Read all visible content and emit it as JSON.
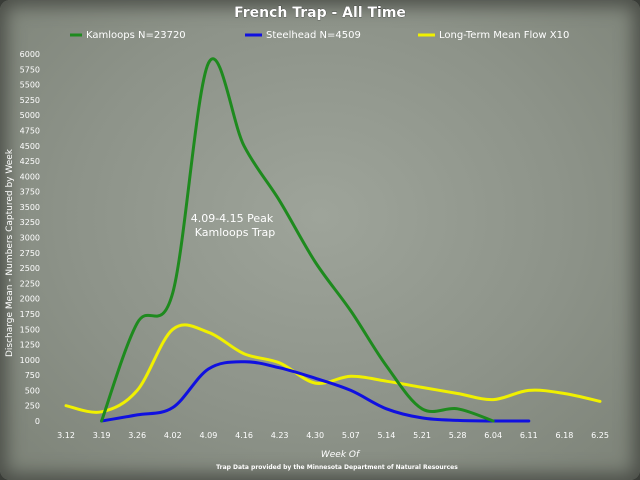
{
  "chart_data": {
    "type": "line",
    "title": "French Trap - All Time",
    "xlabel": "Week Of",
    "ylabel": "Discharge Mean - Numbers Captured by Week",
    "ylim": [
      0,
      6000
    ],
    "yticks": [
      0,
      250,
      500,
      750,
      1000,
      1250,
      1500,
      1750,
      2000,
      2250,
      2500,
      2750,
      3000,
      3250,
      3500,
      3750,
      4000,
      4250,
      4500,
      4750,
      5000,
      5250,
      5500,
      5750,
      6000
    ],
    "categories": [
      "3.12",
      "3.19",
      "3.26",
      "4.02",
      "4.09",
      "4.16",
      "4.23",
      "4.30",
      "5.07",
      "5.14",
      "5.21",
      "5.28",
      "6.04",
      "6.11",
      "6.18",
      "6.25"
    ],
    "grid": false,
    "legend_position": "top",
    "series": [
      {
        "name": "Kamloops N=23720",
        "color": "#1e8a1e",
        "points": [
          [
            1,
            0
          ],
          [
            2,
            1600
          ],
          [
            3,
            2100
          ],
          [
            4,
            5850
          ],
          [
            5,
            4500
          ],
          [
            6,
            3600
          ],
          [
            7,
            2600
          ],
          [
            8,
            1800
          ],
          [
            9,
            900
          ],
          [
            10,
            200
          ],
          [
            11,
            200
          ],
          [
            12,
            0
          ]
        ]
      },
      {
        "name": "Steelhead N=4509",
        "color": "#1010e0",
        "points": [
          [
            1,
            0
          ],
          [
            2,
            100
          ],
          [
            3,
            220
          ],
          [
            4,
            850
          ],
          [
            5,
            970
          ],
          [
            6,
            870
          ],
          [
            7,
            700
          ],
          [
            8,
            500
          ],
          [
            9,
            200
          ],
          [
            10,
            50
          ],
          [
            11,
            10
          ],
          [
            12,
            0
          ],
          [
            13,
            0
          ]
        ]
      },
      {
        "name": "Long-Term Mean Flow X10",
        "color": "#f0f000",
        "points": [
          [
            0,
            250
          ],
          [
            1,
            150
          ],
          [
            2,
            500
          ],
          [
            3,
            1500
          ],
          [
            4,
            1450
          ],
          [
            5,
            1100
          ],
          [
            6,
            950
          ],
          [
            7,
            620
          ],
          [
            8,
            730
          ],
          [
            9,
            650
          ],
          [
            10,
            550
          ],
          [
            11,
            450
          ],
          [
            12,
            350
          ],
          [
            13,
            500
          ],
          [
            14,
            450
          ],
          [
            15,
            320
          ]
        ]
      }
    ],
    "annotations": [
      {
        "lines": [
          "4.09-4.15 Peak",
          "Kamloops Trap"
        ]
      }
    ],
    "source_note": "Trap Data provided by the Minnesota Department of Natural Resources"
  }
}
